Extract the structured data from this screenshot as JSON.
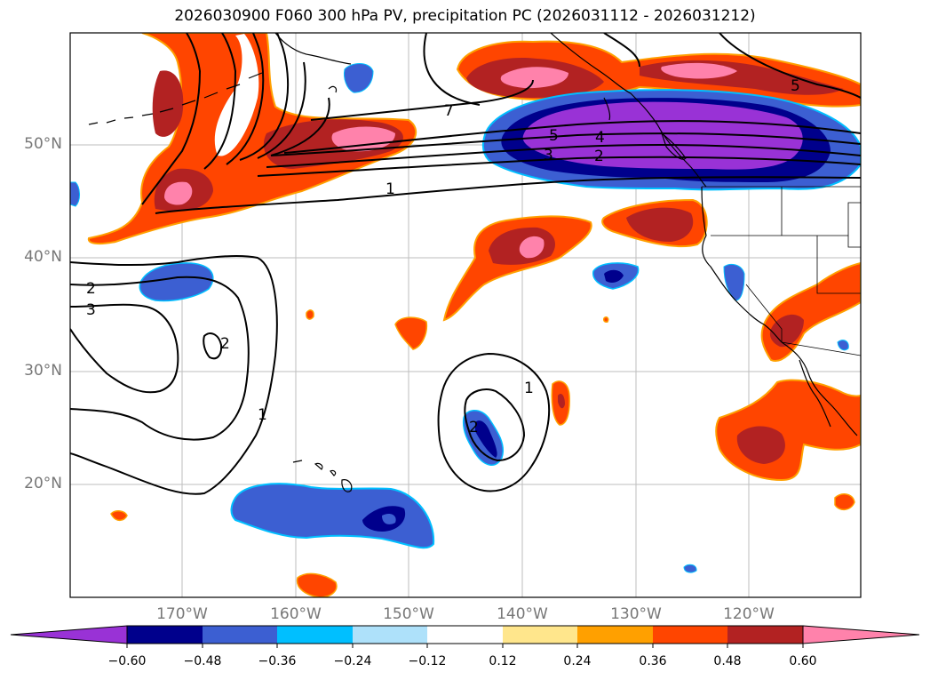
{
  "title": "2026030900 F060 300 hPa PV, precipitation PC (2026031112 - 2026031212)",
  "axes": {
    "lat_labels": [
      "50°N",
      "40°N",
      "30°N",
      "20°N"
    ],
    "lon_labels": [
      "170°W",
      "160°W",
      "150°W",
      "140°W",
      "130°W",
      "120°W"
    ]
  },
  "contour_labels": [
    "7",
    "5",
    "5",
    "4",
    "3",
    "2",
    "1",
    "2",
    "3",
    "2",
    "1",
    "1",
    "2"
  ],
  "colorbar": {
    "ticks": [
      "−0.60",
      "−0.48",
      "−0.36",
      "−0.24",
      "−0.12",
      "0.12",
      "0.24",
      "0.36",
      "0.48",
      "0.60"
    ],
    "colors": [
      "#9932d6",
      "#00008c",
      "#3c5fd2",
      "#00bfff",
      "#aee1fa",
      "#ffffff",
      "#ffe68c",
      "#ffa000",
      "#ff4500",
      "#b22222",
      "#ff82ab"
    ]
  },
  "colors": {
    "purple": "#9932d6",
    "navy": "#00008c",
    "royal": "#3c5fd2",
    "sky": "#00bfff",
    "pale_blue": "#aee1fa",
    "pale_yellow": "#ffe68c",
    "orange": "#ffa000",
    "red_orange": "#ff4500",
    "firebrick": "#b22222",
    "pink": "#ff82ab"
  }
}
